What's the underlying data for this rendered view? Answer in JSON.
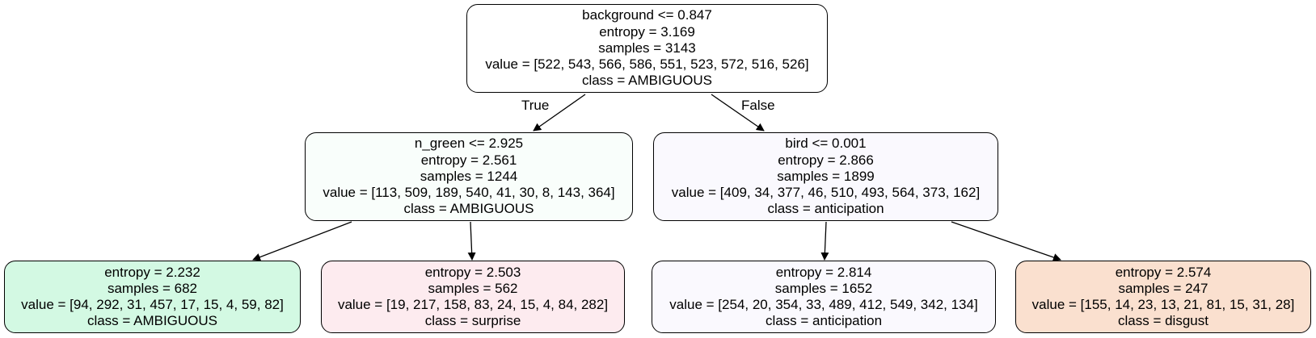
{
  "edge_labels": {
    "true": "True",
    "false": "False"
  },
  "nodes": {
    "root": {
      "split": "background <= 0.847",
      "entropy": "entropy = 3.169",
      "samples": "samples = 3143",
      "value": "value = [522, 543, 566, 586, 551, 523, 572, 516, 526]",
      "class": "class = AMBIGUOUS",
      "fill": "#ffffff"
    },
    "left": {
      "split": "n_green <= 2.925",
      "entropy": "entropy = 2.561",
      "samples": "samples = 1244",
      "value": "value = [113, 509, 189, 540, 41, 30, 8, 143, 364]",
      "class": "class = AMBIGUOUS",
      "fill": "#f9fefb"
    },
    "right": {
      "split": "bird <= 0.001",
      "entropy": "entropy = 2.866",
      "samples": "samples = 1899",
      "value": "value = [409, 34, 377, 46, 510, 493, 564, 373, 162]",
      "class": "class = anticipation",
      "fill": "#faf9fe"
    },
    "left_left": {
      "entropy": "entropy = 2.232",
      "samples": "samples = 682",
      "value": "value = [94, 292, 31, 457, 17, 15, 4, 59, 82]",
      "class": "class = AMBIGUOUS",
      "fill": "#d3f9e3"
    },
    "left_right": {
      "entropy": "entropy = 2.503",
      "samples": "samples = 562",
      "value": "value = [19, 217, 158, 83, 24, 15, 4, 84, 282]",
      "class": "class = surprise",
      "fill": "#fdebef"
    },
    "right_left": {
      "entropy": "entropy = 2.814",
      "samples": "samples = 1652",
      "value": "value = [254, 20, 354, 33, 489, 412, 549, 342, 134]",
      "class": "class = anticipation",
      "fill": "#faf9fe"
    },
    "right_right": {
      "entropy": "entropy = 2.574",
      "samples": "samples = 247",
      "value": "value = [155, 14, 23, 13, 21, 81, 15, 31, 28]",
      "class": "class = disgust",
      "fill": "#fae0cf"
    }
  }
}
